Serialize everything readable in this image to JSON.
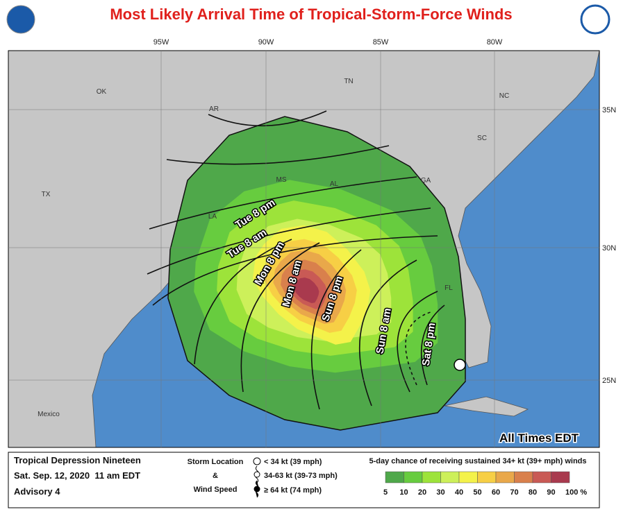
{
  "header": {
    "title": "Most Likely Arrival Time of Tropical-Storm-Force Winds"
  },
  "map": {
    "longitudes": [
      "95W",
      "90W",
      "85W",
      "80W"
    ],
    "latitudes": [
      "35N",
      "30N",
      "25N"
    ],
    "places": [
      "OK",
      "TN",
      "NC",
      "AR",
      "MS",
      "AL",
      "GA",
      "SC",
      "LA",
      "TX",
      "FL",
      "Mexico"
    ],
    "arrival_times": [
      "Tue 8 pm",
      "Tue 8 am",
      "Mon 8 pm",
      "Mon 8 am",
      "Sun 8 pm",
      "Sun 8 am",
      "Sat 8 pm"
    ],
    "note": "All Times EDT"
  },
  "legend": {
    "storm": {
      "name": "Tropical Depression Nineteen",
      "time": "Sat. Sep. 12, 2020  11 am EDT",
      "advisory": "Advisory 4"
    },
    "symbols": {
      "heading_1": "Storm Location",
      "heading_2": "&",
      "heading_3": "Wind Speed",
      "items": [
        "< 34 kt (39 mph)",
        "34-63 kt (39-73 mph)",
        "≥ 64 kt (74 mph)"
      ]
    },
    "scale": {
      "title": "5-day chance of receiving sustained 34+ kt (39+ mph) winds",
      "labels": [
        "5",
        "10",
        "20",
        "30",
        "40",
        "50",
        "60",
        "70",
        "80",
        "90",
        "100 %"
      ],
      "colors": [
        "#4fa84a",
        "#67cc3f",
        "#9de33a",
        "#cdf05a",
        "#f4f24a",
        "#f7cf45",
        "#e9a84a",
        "#d9804c",
        "#c95a55",
        "#a93a4e",
        "#b451c4"
      ]
    }
  }
}
